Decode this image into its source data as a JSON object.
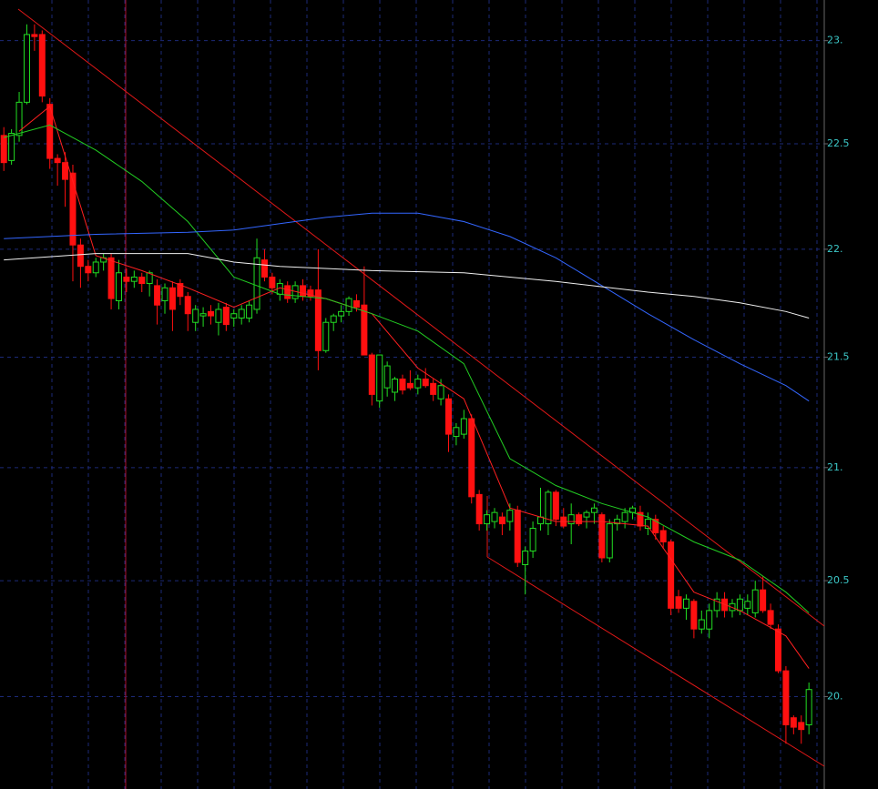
{
  "chart_data": {
    "type": "candlestick",
    "log": true,
    "grid": true,
    "up_color": "#22dd22",
    "down_color": "#ff1010",
    "xlim": [
      -0.5,
      107
    ],
    "ylim": [
      19.61,
      23.2
    ],
    "yticks": [
      {
        "value": 23,
        "label": "23."
      },
      22.5,
      {
        "value": 22,
        "label": "22."
      },
      21.5,
      {
        "value": 21,
        "label": "21."
      },
      20.5,
      {
        "value": 20,
        "label": "20."
      }
    ],
    "open": [
      22.54,
      22.42,
      22.54,
      22.7,
      23.03,
      23.03,
      22.69,
      22.43,
      22.41,
      22.36,
      22.02,
      21.92,
      21.89,
      21.94,
      21.96,
      21.76,
      21.87,
      21.85,
      21.87,
      21.84,
      21.83,
      21.76,
      21.82,
      21.84,
      21.78,
      21.66,
      21.69,
      21.71,
      21.66,
      21.73,
      21.68,
      21.68,
      21.68,
      21.72,
      21.95,
      21.87,
      21.79,
      21.83,
      21.77,
      21.83,
      21.81,
      21.81,
      21.53,
      21.66,
      21.69,
      21.71,
      21.76,
      21.74,
      21.51,
      21.3,
      21.36,
      21.34,
      21.4,
      21.38,
      21.36,
      21.4,
      21.38,
      21.31,
      21.31,
      21.14,
      21.15,
      21.22,
      20.88,
      20.75,
      20.76,
      20.78,
      20.76,
      20.81,
      20.57,
      20.63,
      20.75,
      20.75,
      20.89,
      20.78,
      20.75,
      20.79,
      20.78,
      20.8,
      20.79,
      20.6,
      20.75,
      20.76,
      20.8,
      20.8,
      20.73,
      20.77,
      20.72,
      20.67,
      20.43,
      20.38,
      20.41,
      20.29,
      20.29,
      20.37,
      20.42,
      20.37,
      20.37,
      20.38,
      20.36,
      20.46,
      20.37,
      20.29,
      20.11,
      19.91,
      19.89,
      19.88
    ],
    "high": [
      22.58,
      22.57,
      22.75,
      23.08,
      23.08,
      23.05,
      22.72,
      22.45,
      22.46,
      22.4,
      22.05,
      21.95,
      21.96,
      21.98,
      21.98,
      21.95,
      21.91,
      21.9,
      21.89,
      21.9,
      21.86,
      21.84,
      21.85,
      21.86,
      21.8,
      21.74,
      21.73,
      21.74,
      21.75,
      21.75,
      21.72,
      21.74,
      21.76,
      22.05,
      22.0,
      21.89,
      21.86,
      21.85,
      21.85,
      21.86,
      21.83,
      22.0,
      21.68,
      21.7,
      21.74,
      21.78,
      21.79,
      21.92,
      21.52,
      21.51,
      21.48,
      21.41,
      21.42,
      21.44,
      21.42,
      21.45,
      21.4,
      21.4,
      21.33,
      21.2,
      21.26,
      21.24,
      20.9,
      20.81,
      20.82,
      20.8,
      20.84,
      20.83,
      20.65,
      20.76,
      20.91,
      20.9,
      20.9,
      20.82,
      20.84,
      20.8,
      20.81,
      20.84,
      20.8,
      20.77,
      20.79,
      20.82,
      20.83,
      20.83,
      20.8,
      20.79,
      20.74,
      20.68,
      20.46,
      20.44,
      20.42,
      20.37,
      20.4,
      20.45,
      20.45,
      20.42,
      20.44,
      20.44,
      20.5,
      20.52,
      20.4,
      20.31,
      20.13,
      19.92,
      19.92,
      20.06
    ],
    "low": [
      22.37,
      22.4,
      22.51,
      22.69,
      22.95,
      22.7,
      22.38,
      22.3,
      22.2,
      21.85,
      21.82,
      21.85,
      21.87,
      21.9,
      21.72,
      21.72,
      21.8,
      21.82,
      21.8,
      21.78,
      21.65,
      21.7,
      21.62,
      21.74,
      21.62,
      21.62,
      21.64,
      21.65,
      21.6,
      21.62,
      21.64,
      21.65,
      21.66,
      21.7,
      21.85,
      21.79,
      21.76,
      21.75,
      21.75,
      21.76,
      21.76,
      21.44,
      21.52,
      21.62,
      21.66,
      21.69,
      21.71,
      21.51,
      21.28,
      21.27,
      21.32,
      21.3,
      21.33,
      21.35,
      21.33,
      21.36,
      21.3,
      21.28,
      21.07,
      21.1,
      21.13,
      20.84,
      20.72,
      20.72,
      20.73,
      20.7,
      20.72,
      20.56,
      20.44,
      20.6,
      20.72,
      20.7,
      20.74,
      20.73,
      20.66,
      20.74,
      20.73,
      20.75,
      20.58,
      20.58,
      20.72,
      20.73,
      20.77,
      20.72,
      20.7,
      20.68,
      20.64,
      20.35,
      20.36,
      20.33,
      20.25,
      20.27,
      20.25,
      20.34,
      20.34,
      20.34,
      20.35,
      20.35,
      20.34,
      20.36,
      20.29,
      20.1,
      19.8,
      19.84,
      19.8,
      19.84
    ],
    "close": [
      22.41,
      22.55,
      22.7,
      23.03,
      23.02,
      22.73,
      22.43,
      22.41,
      22.33,
      22.02,
      21.92,
      21.89,
      21.94,
      21.96,
      21.77,
      21.89,
      21.85,
      21.87,
      21.84,
      21.89,
      21.74,
      21.82,
      21.72,
      21.78,
      21.7,
      21.72,
      21.7,
      21.69,
      21.72,
      21.65,
      21.7,
      21.72,
      21.74,
      21.96,
      21.87,
      21.82,
      21.84,
      21.77,
      21.83,
      21.78,
      21.78,
      21.53,
      21.66,
      21.69,
      21.71,
      21.77,
      21.73,
      21.51,
      21.33,
      21.51,
      21.46,
      21.4,
      21.35,
      21.36,
      21.4,
      21.37,
      21.33,
      21.37,
      21.15,
      21.18,
      21.22,
      20.87,
      20.75,
      20.79,
      20.8,
      20.75,
      20.81,
      20.58,
      20.63,
      20.73,
      20.78,
      20.89,
      20.77,
      20.74,
      20.79,
      20.75,
      20.8,
      20.82,
      20.6,
      20.75,
      20.77,
      20.8,
      20.82,
      20.74,
      20.77,
      20.71,
      20.67,
      20.38,
      20.38,
      20.42,
      20.29,
      20.33,
      20.37,
      20.42,
      20.37,
      20.4,
      20.42,
      20.41,
      20.46,
      20.37,
      20.31,
      20.11,
      19.88,
      19.87,
      19.86,
      20.03
    ],
    "series": [
      {
        "color": "#ff2020",
        "x": [
          2,
          6,
          12,
          18,
          24,
          30,
          36,
          42,
          48,
          54,
          60,
          66,
          72,
          78,
          84,
          90,
          96,
          102,
          105
        ],
        "values": [
          22.56,
          22.68,
          21.97,
          21.9,
          21.82,
          21.73,
          21.82,
          21.77,
          21.7,
          21.45,
          21.31,
          20.82,
          20.76,
          20.76,
          20.74,
          20.45,
          20.37,
          20.26,
          20.12
        ]
      },
      {
        "color": "#22cc22",
        "x": [
          0,
          6,
          12,
          18,
          24,
          30,
          36,
          42,
          48,
          54,
          60,
          66,
          72,
          78,
          84,
          90,
          96,
          102,
          105
        ],
        "values": [
          22.53,
          22.59,
          22.47,
          22.32,
          22.13,
          21.87,
          21.79,
          21.77,
          21.7,
          21.62,
          21.47,
          21.04,
          20.92,
          20.84,
          20.78,
          20.67,
          20.59,
          20.45,
          20.36
        ]
      },
      {
        "color": "#3366ff",
        "x": [
          0,
          12,
          24,
          30,
          36,
          42,
          48,
          54,
          60,
          66,
          72,
          78,
          84,
          90,
          96,
          102,
          105
        ],
        "values": [
          22.05,
          22.07,
          22.08,
          22.09,
          22.12,
          22.15,
          22.17,
          22.17,
          22.13,
          22.06,
          21.96,
          21.83,
          21.7,
          21.58,
          21.47,
          21.37,
          21.3
        ]
      },
      {
        "color": "#f0f0f0",
        "x": [
          0,
          12,
          24,
          30,
          36,
          48,
          60,
          72,
          84,
          90,
          96,
          102,
          105
        ],
        "values": [
          21.95,
          21.98,
          21.98,
          21.94,
          21.92,
          21.9,
          21.89,
          21.85,
          21.8,
          21.78,
          21.75,
          21.71,
          21.68
        ]
      }
    ]
  }
}
